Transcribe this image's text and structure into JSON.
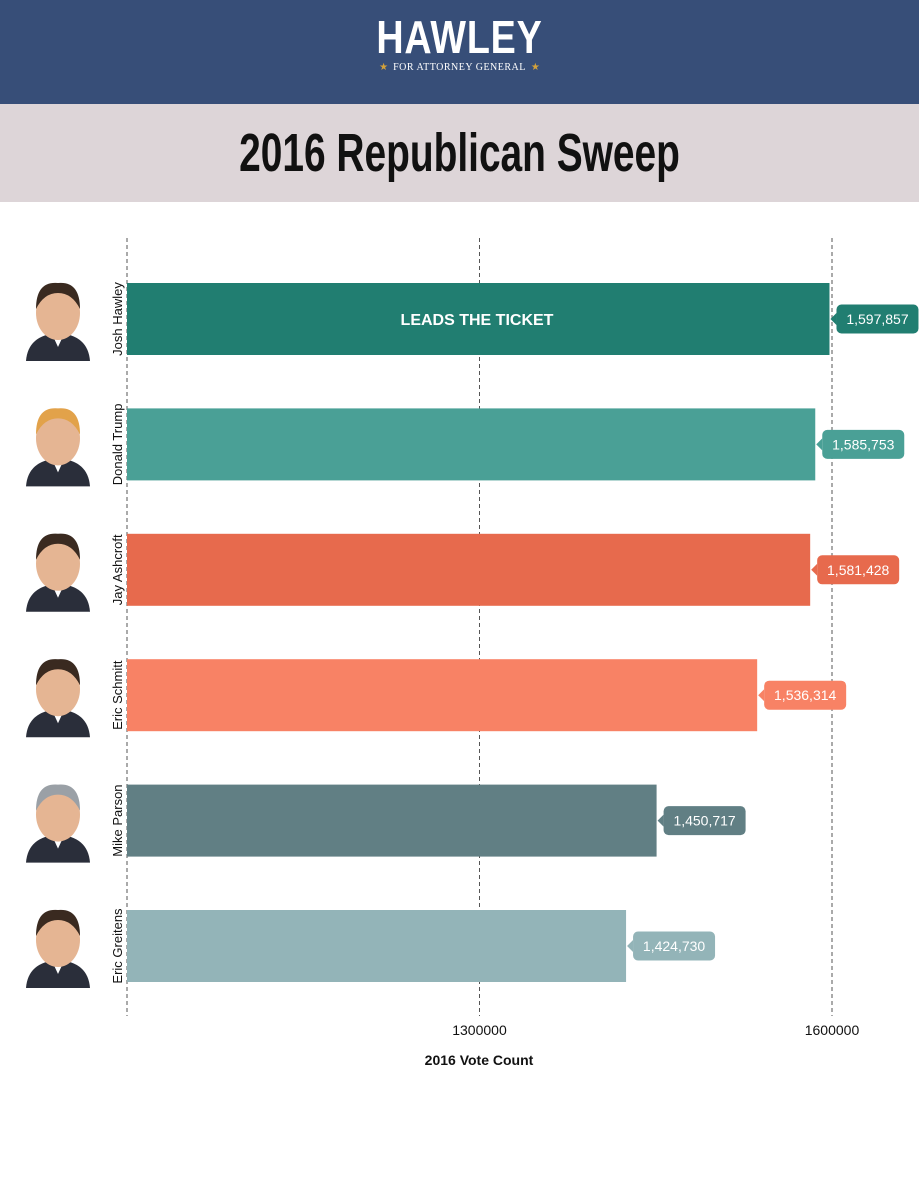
{
  "header": {
    "logo_name": "HAWLEY",
    "logo_subtitle": "FOR ATTORNEY GENERAL",
    "logo_star": "★",
    "background": "#374e78"
  },
  "title": "2016 Republican Sweep",
  "chart_data": {
    "type": "bar",
    "orientation": "horizontal",
    "title": "2016 Republican Sweep",
    "xlabel": "2016 Vote Count",
    "ylabel": "",
    "xlim": [
      1000000,
      1600000
    ],
    "xticks": [
      1300000,
      1600000
    ],
    "xtick_labels": [
      "1300000",
      "1600000"
    ],
    "grid": "vertical dashed",
    "categories": [
      "Josh Hawley",
      "Donald Trump",
      "Jay Ashcroft",
      "Eric Schmitt",
      "Mike Parson",
      "Eric Greitens"
    ],
    "values": [
      1597857,
      1585753,
      1581428,
      1536314,
      1450717,
      1424730
    ],
    "value_labels": [
      "1,597,857",
      "1,585,753",
      "1,581,428",
      "1,536,314",
      "1,450,717",
      "1,424,730"
    ],
    "colors": [
      "#217e71",
      "#4aa096",
      "#e76a4d",
      "#f88265",
      "#617f84",
      "#93b4b8"
    ],
    "annotation": "LEADS THE TICKET"
  }
}
